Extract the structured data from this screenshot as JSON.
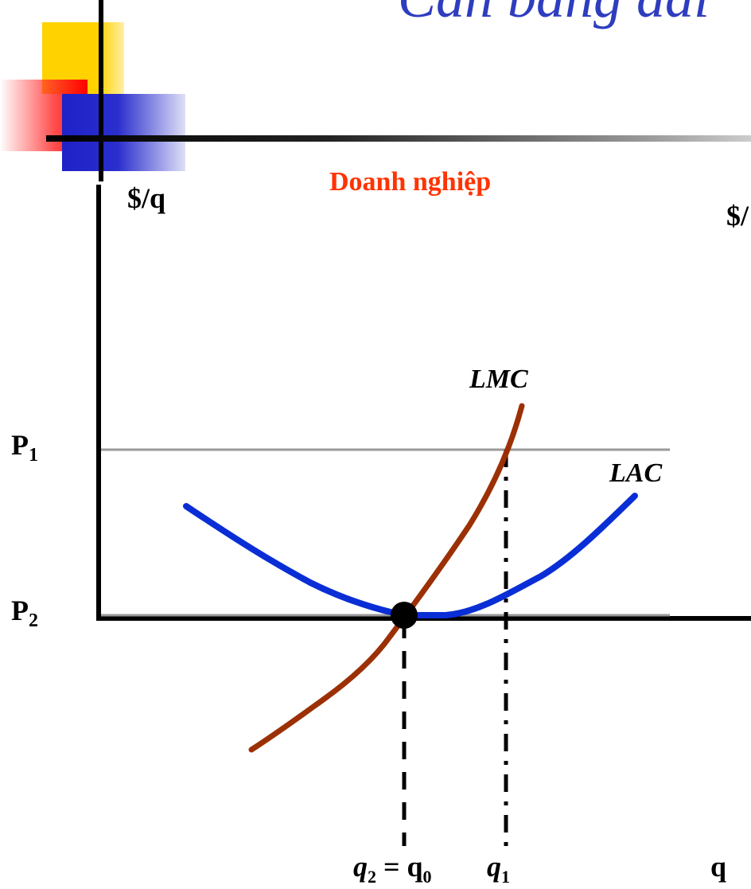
{
  "slide": {
    "title_partial": "Cân bằng dài",
    "panel_title": "Doanh nghiệp",
    "colors": {
      "title": "#2e3dbf",
      "panel_title": "#ff3300",
      "lac": "#0a2ed6",
      "lmc": "#9c3005",
      "price_lines": "#9a9a9a"
    },
    "decor_icons": [
      "yellow-square",
      "red-square",
      "blue-square"
    ]
  },
  "axes": {
    "y_label": "$/q",
    "x_label": "q",
    "second_panel_y_label_partial": "$/"
  },
  "prices": {
    "p1": {
      "label": "P",
      "sub": "1"
    },
    "p2": {
      "label": "P",
      "sub": "2"
    }
  },
  "curves": {
    "lmc": "LMC",
    "lac": "LAC"
  },
  "quantities": {
    "q2": {
      "label": "q",
      "sub": "2",
      "eq": " = q",
      "eq_sub": "0"
    },
    "q1": {
      "label": "q",
      "sub": "1"
    }
  },
  "chart_data": {
    "type": "line",
    "xlabel": "q",
    "ylabel": "$/q",
    "title": "Doanh nghiệp",
    "horizontal_lines": [
      {
        "label": "P1",
        "y": "P1"
      },
      {
        "label": "P2",
        "y": "P2"
      }
    ],
    "series": [
      {
        "name": "LMC",
        "shape": "upward-sloping, steepening"
      },
      {
        "name": "LAC",
        "shape": "U-shaped, minimum at q2 = q0"
      }
    ],
    "marked_points": [
      {
        "label": "LMC = LAC at minimum LAC",
        "x": "q2 = q0",
        "y": "P2"
      },
      {
        "label": "LMC = P1",
        "x": "q1",
        "y": "P1"
      }
    ]
  }
}
